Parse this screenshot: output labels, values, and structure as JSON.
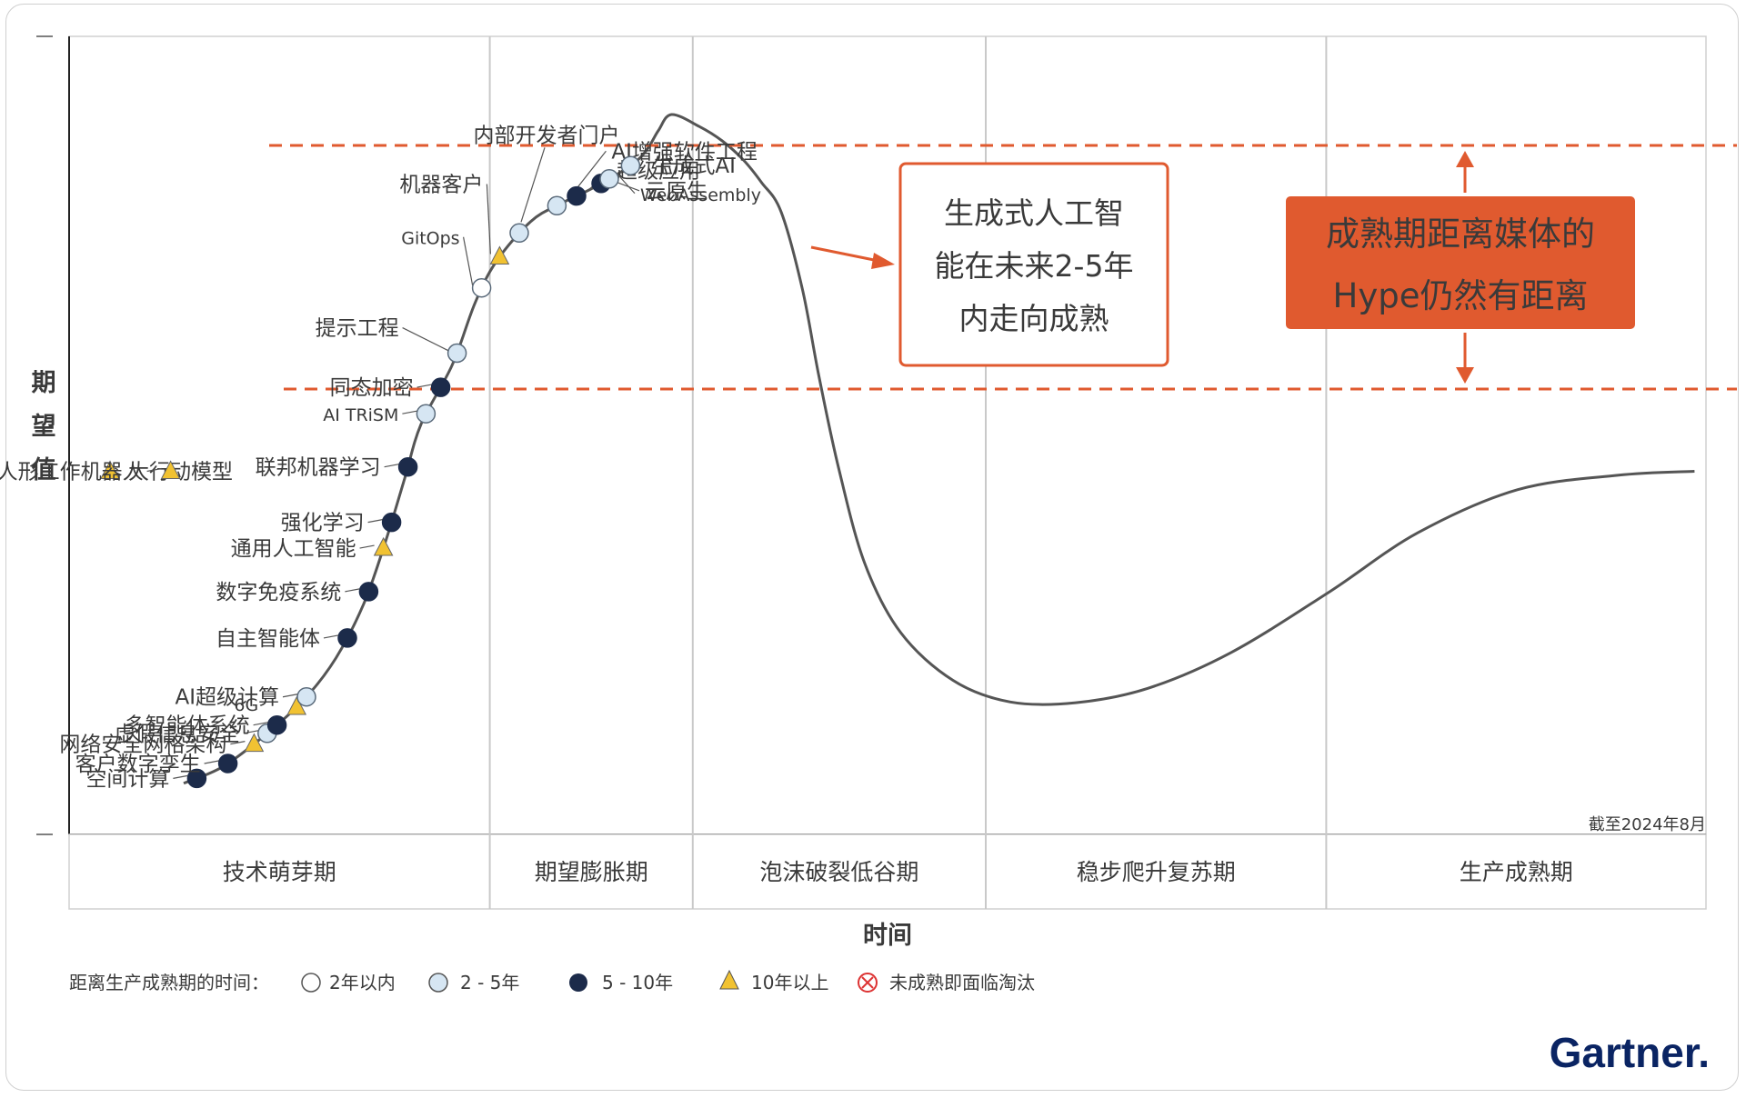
{
  "chart_data": {
    "type": "scatter",
    "title": "",
    "xlabel": "时间",
    "ylabel": "期望值",
    "as_of": "截至2024年8月",
    "phases": [
      "技术萌芽期",
      "期望膨胀期",
      "泡沫破裂低谷期",
      "稳步爬升复苏期",
      "生产成熟期"
    ],
    "legend": {
      "title": "距离生产成熟期的时间：",
      "items": [
        {
          "key": "lt2",
          "label": "2年以内",
          "marker": "circle-white"
        },
        {
          "key": "2-5",
          "label": "2 - 5年",
          "marker": "circle-light"
        },
        {
          "key": "5-10",
          "label": "5 - 10年",
          "marker": "circle-dark"
        },
        {
          "key": "gt10",
          "label": "10年以上",
          "marker": "triangle"
        },
        {
          "key": "obsolete",
          "label": "未成熟即面临淘汰",
          "marker": "cross"
        }
      ]
    },
    "technologies": [
      {
        "label": "大行动模型",
        "cat": "gt10",
        "t": 0.025
      },
      {
        "label": "人形工作机器人",
        "cat": "gt10",
        "t": 0.062
      },
      {
        "label": "空间计算",
        "cat": "5-10",
        "t": 0.078
      },
      {
        "label": "客户数字孪生",
        "cat": "5-10",
        "t": 0.097
      },
      {
        "label": "网络安全网格架构",
        "cat": "gt10",
        "t": 0.113
      },
      {
        "label": "虚假信息安全",
        "cat": "2-5",
        "t": 0.121
      },
      {
        "label": "多智能体系统",
        "cat": "5-10",
        "t": 0.127
      },
      {
        "label": "6G",
        "cat": "gt10",
        "t": 0.139
      },
      {
        "label": "AI超级计算",
        "cat": "2-5",
        "t": 0.145
      },
      {
        "label": "自主智能体",
        "cat": "5-10",
        "t": 0.17
      },
      {
        "label": "数字免疫系统",
        "cat": "5-10",
        "t": 0.183
      },
      {
        "label": "通用人工智能",
        "cat": "gt10",
        "t": 0.192
      },
      {
        "label": "强化学习",
        "cat": "5-10",
        "t": 0.197
      },
      {
        "label": "联邦机器学习",
        "cat": "5-10",
        "t": 0.207
      },
      {
        "label": "AI TRiSM",
        "cat": "2-5",
        "t": 0.218
      },
      {
        "label": "同态加密",
        "cat": "5-10",
        "t": 0.227
      },
      {
        "label": "提示工程",
        "cat": "2-5",
        "t": 0.237
      },
      {
        "label": "GitOps",
        "cat": "lt2",
        "t": 0.252
      },
      {
        "label": "机器客户",
        "cat": "gt10",
        "t": 0.263
      },
      {
        "label": "内部开发者门户",
        "cat": "2-5",
        "t": 0.275
      },
      {
        "label": "AI增强软件工程",
        "cat": "2-5",
        "t": 0.298
      },
      {
        "label": "超级应用",
        "cat": "5-10",
        "t": 0.31
      },
      {
        "label": "云原生",
        "cat": "5-10",
        "t": 0.325
      },
      {
        "label": "WebAssembly",
        "cat": "2-5",
        "t": 0.33
      },
      {
        "label": "生成式AI",
        "cat": "2-5",
        "t": 0.343
      }
    ],
    "annotations": [
      {
        "name": "box-genai",
        "text": [
          "生成式人工智",
          "能在未来2-5年",
          "内走向成熟"
        ]
      },
      {
        "name": "box-hype",
        "text": [
          "成熟期距离媒体的",
          "Hype仍然有距离"
        ]
      }
    ],
    "grid": true
  },
  "brand": "Gartner.",
  "colors": {
    "curve": "#555555",
    "accent": "#e05a2f",
    "dark_marker": "#1c2b4a",
    "light_marker": "#d6e6f3",
    "triangle": "#f1c232",
    "grid": "#c9c9c9"
  }
}
